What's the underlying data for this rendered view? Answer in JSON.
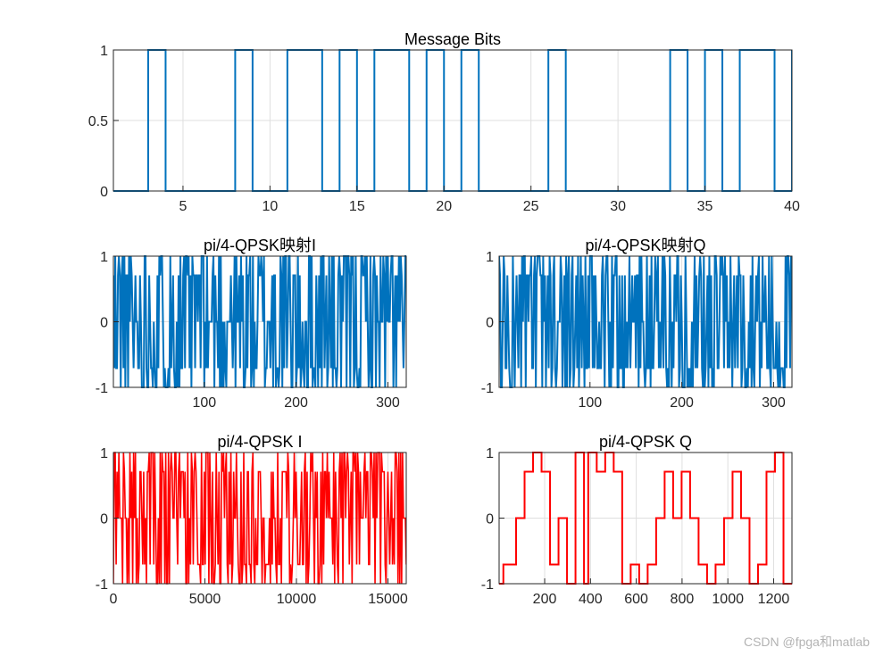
{
  "watermark": "CSDN @fpga和matlab",
  "chart_data": [
    {
      "id": "bits",
      "type": "line",
      "step": true,
      "title": "Message Bits",
      "xlabel": "",
      "ylabel": "",
      "xlim": [
        1,
        40
      ],
      "ylim": [
        0,
        1
      ],
      "xticks": [
        5,
        10,
        15,
        20,
        25,
        30,
        35,
        40
      ],
      "yticks": [
        0,
        0.5,
        1
      ],
      "ytick_labels": [
        "0",
        "0.5",
        "1"
      ],
      "grid": true,
      "color": "#0072BD",
      "bits": [
        0,
        0,
        1,
        0,
        0,
        0,
        0,
        1,
        0,
        0,
        1,
        1,
        0,
        1,
        0,
        1,
        1,
        0,
        1,
        0,
        1,
        0,
        0,
        0,
        0,
        1,
        0,
        0,
        0,
        0,
        0,
        0,
        1,
        0,
        1,
        0,
        1,
        1,
        0,
        1
      ]
    },
    {
      "id": "mapI",
      "type": "line",
      "title": "pi/4-QPSK映射I",
      "xlim": [
        1,
        320
      ],
      "ylim": [
        -1,
        1
      ],
      "xticks": [
        100,
        200,
        300
      ],
      "yticks": [
        -1,
        0,
        1
      ],
      "grid": true,
      "color": "#0072BD",
      "levels": [
        -1,
        -0.7071,
        0,
        0.7071,
        1
      ],
      "points": 320,
      "seed": 11
    },
    {
      "id": "mapQ",
      "type": "line",
      "title": "pi/4-QPSK映射Q",
      "xlim": [
        1,
        320
      ],
      "ylim": [
        -1,
        1
      ],
      "xticks": [
        100,
        200,
        300
      ],
      "yticks": [
        -1,
        0,
        1
      ],
      "grid": true,
      "color": "#0072BD",
      "levels": [
        -1,
        -0.7071,
        0,
        0.7071,
        1
      ],
      "points": 320,
      "seed": 23
    },
    {
      "id": "outI",
      "type": "line",
      "title": "pi/4-QPSK I",
      "xlim": [
        0,
        16000
      ],
      "ylim": [
        -1,
        1
      ],
      "xticks": [
        0,
        5000,
        10000,
        15000
      ],
      "yticks": [
        -1,
        0,
        1
      ],
      "grid": true,
      "color": "#FF0000",
      "levels": [
        -1,
        -0.7071,
        0,
        0.7071,
        1
      ],
      "points": 320,
      "seed": 37
    },
    {
      "id": "outQ",
      "type": "line",
      "step": true,
      "title": "pi/4-QPSK Q",
      "xlim": [
        1,
        1280
      ],
      "ylim": [
        -1,
        1
      ],
      "xticks": [
        200,
        400,
        600,
        800,
        1000,
        1200
      ],
      "yticks": [
        -1,
        0,
        1
      ],
      "grid": true,
      "color": "#FF0000",
      "levels": [
        -1,
        -0.7071,
        -0.7071,
        -0.7071,
        0,
        0,
        0.7071,
        0.7071,
        1,
        1,
        0.7071,
        0.7071,
        -0.7071,
        -0.7071,
        0,
        0,
        -1,
        -1,
        1,
        1,
        -1,
        1,
        1,
        0.7071,
        0.7071,
        1,
        1,
        0.7071,
        0.7071,
        -1,
        -1,
        -0.7071,
        -0.7071,
        -1,
        -1,
        -0.7071,
        -0.7071,
        0,
        0,
        0.7071,
        0.7071,
        0,
        0,
        0.7071,
        0.7071,
        0,
        0,
        -0.7071,
        -0.7071,
        -1,
        -1,
        -0.7071,
        -0.7071,
        0,
        0,
        0.7071,
        0.7071,
        0,
        0,
        -1,
        -1,
        -0.7071,
        -0.7071,
        0.7071,
        0.7071,
        1,
        1,
        -1,
        -1
      ],
      "step_len": 18.5
    }
  ]
}
